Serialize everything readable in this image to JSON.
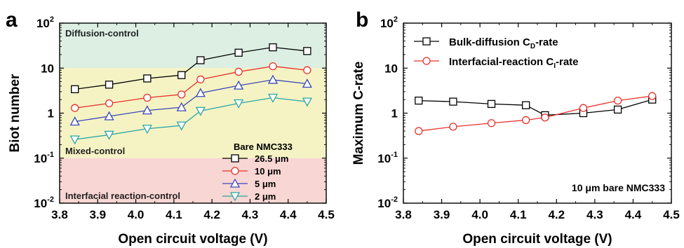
{
  "chart_data": [
    {
      "panel": "a",
      "type": "line",
      "xlabel": "Open circuit voltage (V)",
      "ylabel": "Biot number",
      "xlim": [
        3.8,
        4.5
      ],
      "ylim": [
        0.01,
        100
      ],
      "yscale": "log",
      "x_ticks": [
        "3.8",
        "3.9",
        "4.0",
        "4.1",
        "4.2",
        "4.3",
        "4.4",
        "4.5"
      ],
      "y_ticks": [
        {
          "base": "10",
          "exp": "2"
        },
        {
          "base": "10",
          "exp": ""
        },
        {
          "base": "1",
          "exp": ""
        },
        {
          "base": "10",
          "exp": "-1"
        },
        {
          "base": "10",
          "exp": "-2"
        }
      ],
      "regions": [
        {
          "label": "Diffusion-control",
          "from": 10,
          "to": 100,
          "color": "#dcefe2"
        },
        {
          "label": "Mixed-control",
          "from": 0.1,
          "to": 10,
          "color": "#f5f3c4"
        },
        {
          "label": "Interfacial reaction-control",
          "from": 0.01,
          "to": 0.1,
          "color": "#f8d6d3"
        }
      ],
      "legend_title": "Bare NMC333",
      "legend_position": "bottom-right",
      "x": [
        3.84,
        3.93,
        4.03,
        4.12,
        4.17,
        4.27,
        4.36,
        4.45
      ],
      "series": [
        {
          "name": "26.5 μm",
          "marker": "square",
          "color": "#000000",
          "values": [
            3.4,
            4.3,
            5.9,
            7.0,
            15,
            22,
            29,
            24
          ]
        },
        {
          "name": "10 μm",
          "marker": "circle",
          "color": "#e8322c",
          "values": [
            1.3,
            1.65,
            2.2,
            2.6,
            5.6,
            8.3,
            11,
            9
          ]
        },
        {
          "name": "5 μm",
          "marker": "triangle-up",
          "color": "#3b47b8",
          "values": [
            0.65,
            0.85,
            1.15,
            1.35,
            2.8,
            4.1,
            5.5,
            4.5
          ]
        },
        {
          "name": "2 μm",
          "marker": "triangle-down",
          "color": "#2aa7a7",
          "values": [
            0.26,
            0.33,
            0.45,
            0.53,
            1.12,
            1.65,
            2.2,
            1.8
          ]
        }
      ]
    },
    {
      "panel": "b",
      "type": "line",
      "xlabel": "Open circuit voltage (V)",
      "ylabel": "Maximum C-rate",
      "xlim": [
        3.8,
        4.5
      ],
      "ylim": [
        0.01,
        100
      ],
      "yscale": "log",
      "x_ticks": [
        "3.8",
        "3.9",
        "4.0",
        "4.1",
        "4.2",
        "4.3",
        "4.4",
        "4.5"
      ],
      "y_ticks": [
        {
          "base": "10",
          "exp": "2"
        },
        {
          "base": "10",
          "exp": ""
        },
        {
          "base": "1",
          "exp": ""
        },
        {
          "base": "10",
          "exp": "-1"
        },
        {
          "base": "10",
          "exp": "-2"
        }
      ],
      "legend_position": "top-left",
      "annotation": "10 μm bare NMC333",
      "x": [
        3.84,
        3.93,
        4.03,
        4.12,
        4.17,
        4.27,
        4.36,
        4.45
      ],
      "series": [
        {
          "name": "Bulk-diffusion C",
          "name_sub": "D",
          "name_suffix": "-rate",
          "marker": "square",
          "color": "#000000",
          "values": [
            1.9,
            1.8,
            1.6,
            1.5,
            0.9,
            1.0,
            1.2,
            2.0
          ]
        },
        {
          "name": "Interfacial-reaction C",
          "name_sub": "I",
          "name_suffix": "-rate",
          "marker": "circle",
          "color": "#e8322c",
          "values": [
            0.4,
            0.5,
            0.6,
            0.7,
            0.8,
            1.3,
            1.9,
            2.4
          ]
        }
      ]
    }
  ]
}
